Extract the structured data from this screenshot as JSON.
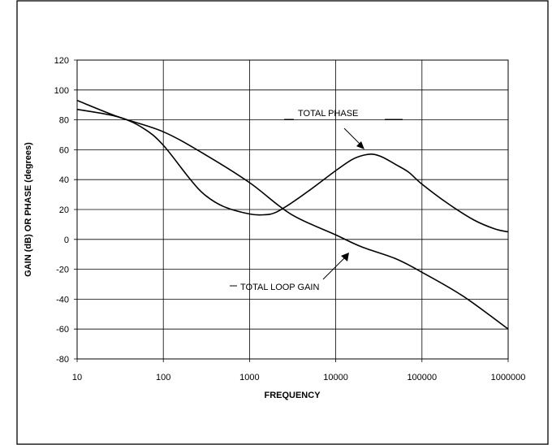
{
  "chart_data": {
    "type": "line",
    "title": "",
    "xlabel": "FREQUENCY",
    "ylabel": "GAIN (dB) OR PHASE (degrees)",
    "x_scale": "log",
    "xlim": [
      10,
      1000000
    ],
    "ylim": [
      -80,
      120
    ],
    "x_ticks": [
      "10",
      "100",
      "1000",
      "10000",
      "100000",
      "1000000"
    ],
    "y_ticks": [
      "120",
      "100",
      "80",
      "60",
      "40",
      "20",
      "0",
      "-20",
      "-40",
      "-60",
      "-80"
    ],
    "grid": true,
    "legend": "none",
    "series": [
      {
        "name": "TOTAL LOOP GAIN",
        "x": [
          10,
          30,
          100,
          300,
          1000,
          3000,
          10000,
          20000,
          50000,
          100000,
          300000,
          1000000
        ],
        "y": [
          93,
          82,
          72,
          57,
          38,
          17,
          3,
          -5,
          -13,
          -22,
          -38,
          -60
        ]
      },
      {
        "name": "TOTAL PHASE",
        "x": [
          10,
          30,
          60,
          100,
          200,
          300,
          500,
          1000,
          1500,
          2000,
          3000,
          5000,
          10000,
          15000,
          20000,
          27000,
          35000,
          50000,
          70000,
          100000,
          200000,
          400000,
          700000,
          1000000
        ],
        "y": [
          87,
          82,
          74,
          63,
          41,
          30,
          22,
          17,
          16.5,
          18,
          24,
          33,
          46,
          53,
          56,
          57,
          55,
          50,
          45,
          37,
          24,
          13,
          7,
          5
        ]
      }
    ],
    "annotations": [
      {
        "text": "TOTAL PHASE",
        "x": 20000,
        "y": 60
      },
      {
        "text": "TOTAL LOOP GAIN",
        "x": 3000,
        "y": -33
      }
    ]
  }
}
